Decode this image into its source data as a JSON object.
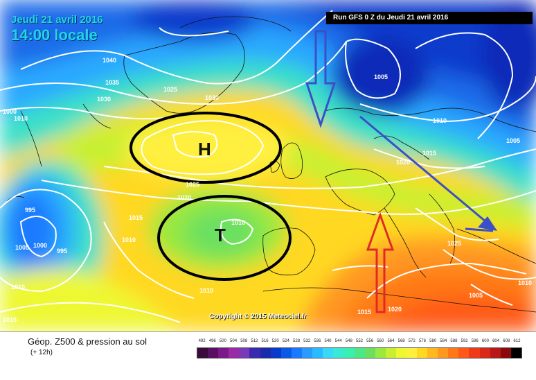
{
  "header": {
    "date": "Jeudi 21 avril 2016",
    "time": "14:00 locale",
    "run": "Run GFS 0 Z du Jeudi 21 avril 2016"
  },
  "copyright": "Copyright © 2015 Meteociel.fr",
  "legend": {
    "title": "Géop. Z500 & pression au sol",
    "subtitle": "(+ 12h)",
    "scale_labels": [
      "492",
      "496",
      "500",
      "504",
      "508",
      "512",
      "516",
      "520",
      "524",
      "528",
      "532",
      "536",
      "540",
      "544",
      "548",
      "552",
      "556",
      "560",
      "564",
      "568",
      "572",
      "576",
      "580",
      "584",
      "588",
      "592",
      "596",
      "600",
      "604",
      "608",
      "612"
    ],
    "scale_colors": [
      "#3a0a3a",
      "#5a1060",
      "#7a1a88",
      "#9a2aa8",
      "#7a3ab8",
      "#3a2ab0",
      "#1a2aa8",
      "#0a3acc",
      "#0a5ae8",
      "#1a7aff",
      "#2a9aff",
      "#2abaff",
      "#3ad8f8",
      "#3ae8d8",
      "#3af0b0",
      "#4ae888",
      "#6ae060",
      "#9ae840",
      "#c8f030",
      "#eef830",
      "#fff040",
      "#ffd820",
      "#ffb820",
      "#ff9820",
      "#ff7818",
      "#ff5818",
      "#ee3a18",
      "#d82818",
      "#b81818",
      "#8a0a0a",
      "#000000"
    ]
  },
  "pressure_centers": [
    {
      "letter": "H"
    },
    {
      "letter": "T"
    }
  ],
  "isobar_labels": [
    "1040",
    "1035",
    "1030",
    "1025",
    "1030",
    "1005",
    "1010",
    "1000",
    "995",
    "1005",
    "1000",
    "995",
    "1010",
    "1015",
    "1010",
    "1020",
    "1025",
    "1010",
    "1010",
    "1015",
    "1020",
    "1005",
    "1010",
    "1015",
    "1020",
    "1025",
    "1015",
    "1005",
    "1010",
    "1035"
  ],
  "colors": {
    "arrow_blue": "#3b4fc8",
    "arrow_red": "#e02a2a",
    "circle": "#000000",
    "isobar": "#ffffff"
  }
}
